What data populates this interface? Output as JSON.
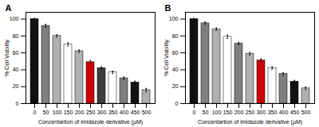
{
  "chart_data": [
    {
      "type": "bar",
      "title": "A",
      "categories": [
        "0",
        "50",
        "100",
        "150",
        "200",
        "250",
        "300",
        "350",
        "400",
        "450",
        "500"
      ],
      "values": [
        100,
        92,
        80,
        70,
        62,
        49,
        42,
        37,
        30,
        25,
        16
      ],
      "errors": [
        0.8,
        1.8,
        1.5,
        2.0,
        1.5,
        2.0,
        1.5,
        1.5,
        1.5,
        1.5,
        2.0
      ],
      "colors": [
        "#111111",
        "#7f7f7f",
        "#b0b0b0",
        "#ffffff",
        "#b0b0b0",
        "#cc0000",
        "#3d3d3d",
        "#ffffff",
        "#7f7f7f",
        "#111111",
        "#b0b0b0"
      ],
      "xlabel": "Concentartion of imidazole derivative (µM)",
      "ylabel": "% Cell Viability",
      "ylim": [
        0,
        108
      ],
      "yticks": [
        0,
        20,
        40,
        60,
        80,
        100
      ]
    },
    {
      "type": "bar",
      "title": "B",
      "categories": [
        "0",
        "50",
        "100",
        "150",
        "200",
        "250",
        "300",
        "350",
        "400",
        "450",
        "500"
      ],
      "values": [
        100,
        95,
        88,
        79,
        71,
        59,
        51,
        42,
        35,
        26,
        18
      ],
      "errors": [
        0.8,
        1.5,
        1.5,
        2.0,
        1.5,
        1.5,
        2.0,
        1.5,
        1.5,
        1.5,
        1.5
      ],
      "colors": [
        "#111111",
        "#7f7f7f",
        "#b0b0b0",
        "#ffffff",
        "#7f7f7f",
        "#b0b0b0",
        "#cc0000",
        "#ffffff",
        "#7f7f7f",
        "#111111",
        "#b0b0b0"
      ],
      "xlabel": "Concentartion of imidazole derivative (µM)",
      "ylabel": "% Cell Viability",
      "ylim": [
        0,
        108
      ],
      "yticks": [
        0,
        20,
        40,
        60,
        80,
        100
      ]
    }
  ]
}
